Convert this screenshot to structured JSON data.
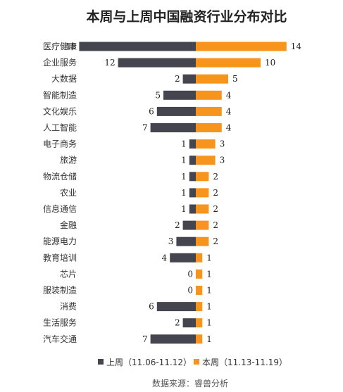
{
  "chart_data": {
    "type": "bar",
    "title": "本周与上周中国融资行业分布对比",
    "categories": [
      "医疗健康",
      "企业服务",
      "大数据",
      "智能制造",
      "文化娱乐",
      "人工智能",
      "电子商务",
      "旅游",
      "物流仓储",
      "农业",
      "信息通信",
      "金融",
      "能源电力",
      "教育培训",
      "芯片",
      "服装制造",
      "消费",
      "生活服务",
      "汽车交通"
    ],
    "series": [
      {
        "name": "上周（11.06-11.12）",
        "values": [
          18,
          12,
          2,
          5,
          6,
          7,
          1,
          1,
          1,
          1,
          1,
          2,
          3,
          4,
          0,
          0,
          6,
          2,
          7
        ]
      },
      {
        "name": "本周（11.13-11.19）",
        "values": [
          14,
          10,
          5,
          4,
          4,
          4,
          3,
          3,
          2,
          2,
          2,
          2,
          2,
          1,
          1,
          1,
          1,
          1,
          1
        ]
      }
    ],
    "legend_position": "bottom",
    "grid": false,
    "source": "数据来源：睿兽分析",
    "colors": {
      "last_week": "#45454f",
      "this_week": "#f7941d"
    }
  }
}
